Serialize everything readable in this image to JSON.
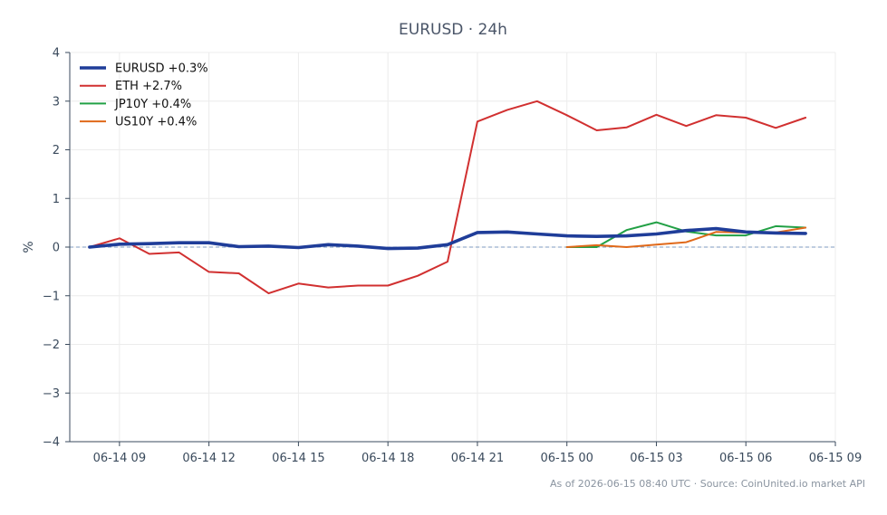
{
  "chart_data": {
    "type": "line",
    "title": "EURUSD · 24h",
    "xlabel": "",
    "ylabel": "%",
    "ylim": [
      -4,
      4
    ],
    "xlim": [
      "2026-06-14 07:20",
      "2026-06-15 09:00"
    ],
    "x_ticks": [
      "06-14 09",
      "06-14 12",
      "06-14 15",
      "06-14 18",
      "06-14 21",
      "06-15 00",
      "06-15 03",
      "06-15 06",
      "06-15 09"
    ],
    "x_tick_times": [
      "2026-06-14 09:00",
      "2026-06-14 12:00",
      "2026-06-14 15:00",
      "2026-06-14 18:00",
      "2026-06-14 21:00",
      "2026-06-15 00:00",
      "2026-06-15 03:00",
      "2026-06-15 06:00",
      "2026-06-15 09:00"
    ],
    "y_ticks": [
      4,
      3,
      2,
      1,
      0,
      -1,
      -2,
      -3,
      -4
    ],
    "y_tick_labels": [
      "4",
      "3",
      "2",
      "1",
      "0",
      "−1",
      "−2",
      "−3",
      "−4"
    ],
    "grid": true,
    "zero_line": true,
    "legend_position": "top-left",
    "footer": "As of 2026-06-15 08:40 UTC · Source: CoinUnited.io market API",
    "series": [
      {
        "name": "EURUSD +0.3%",
        "color": "#1f3d99",
        "thick": true,
        "x": [
          "2026-06-14 08:00",
          "2026-06-14 09:00",
          "2026-06-14 10:00",
          "2026-06-14 11:00",
          "2026-06-14 12:00",
          "2026-06-14 13:00",
          "2026-06-14 14:00",
          "2026-06-14 15:00",
          "2026-06-14 16:00",
          "2026-06-14 17:00",
          "2026-06-14 18:00",
          "2026-06-14 19:00",
          "2026-06-14 20:00",
          "2026-06-14 21:00",
          "2026-06-14 22:00",
          "2026-06-14 23:00",
          "2026-06-15 00:00",
          "2026-06-15 01:00",
          "2026-06-15 02:00",
          "2026-06-15 03:00",
          "2026-06-15 04:00",
          "2026-06-15 05:00",
          "2026-06-15 06:00",
          "2026-06-15 07:00",
          "2026-06-15 08:00"
        ],
        "values": [
          0.0,
          0.06,
          0.07,
          0.09,
          0.09,
          0.01,
          0.02,
          -0.01,
          0.05,
          0.02,
          -0.03,
          -0.02,
          0.05,
          0.3,
          0.31,
          0.27,
          0.23,
          0.22,
          0.23,
          0.27,
          0.34,
          0.38,
          0.31,
          0.29,
          0.28
        ]
      },
      {
        "name": "ETH +2.7%",
        "color": "#d13030",
        "thick": false,
        "x": [
          "2026-06-14 08:00",
          "2026-06-14 09:00",
          "2026-06-14 10:00",
          "2026-06-14 11:00",
          "2026-06-14 12:00",
          "2026-06-14 13:00",
          "2026-06-14 14:00",
          "2026-06-14 15:00",
          "2026-06-14 16:00",
          "2026-06-14 17:00",
          "2026-06-14 18:00",
          "2026-06-14 19:00",
          "2026-06-14 20:00",
          "2026-06-14 21:00",
          "2026-06-14 22:00",
          "2026-06-14 23:00",
          "2026-06-15 00:00",
          "2026-06-15 01:00",
          "2026-06-15 02:00",
          "2026-06-15 03:00",
          "2026-06-15 04:00",
          "2026-06-15 05:00",
          "2026-06-15 06:00",
          "2026-06-15 07:00",
          "2026-06-15 08:00"
        ],
        "values": [
          0.0,
          0.18,
          -0.14,
          -0.11,
          -0.51,
          -0.54,
          -0.95,
          -0.75,
          -0.83,
          -0.79,
          -0.79,
          -0.59,
          -0.3,
          2.58,
          2.82,
          3.0,
          2.71,
          2.4,
          2.46,
          2.72,
          2.49,
          2.71,
          2.66,
          2.45,
          2.66
        ]
      },
      {
        "name": "JP10Y +0.4%",
        "color": "#22a045",
        "thick": false,
        "x": [
          "2026-06-15 00:00",
          "2026-06-15 01:00",
          "2026-06-15 02:00",
          "2026-06-15 03:00",
          "2026-06-15 04:00",
          "2026-06-15 05:00",
          "2026-06-15 06:00",
          "2026-06-15 07:00",
          "2026-06-15 08:00"
        ],
        "values": [
          0.0,
          0.0,
          0.35,
          0.51,
          0.32,
          0.24,
          0.24,
          0.43,
          0.4
        ]
      },
      {
        "name": "US10Y +0.4%",
        "color": "#e0691a",
        "thick": false,
        "x": [
          "2026-06-15 00:00",
          "2026-06-15 01:00",
          "2026-06-15 02:00",
          "2026-06-15 03:00",
          "2026-06-15 04:00",
          "2026-06-15 05:00",
          "2026-06-15 06:00",
          "2026-06-15 07:00",
          "2026-06-15 08:00"
        ],
        "values": [
          0.0,
          0.04,
          0.0,
          0.05,
          0.1,
          0.31,
          0.3,
          0.3,
          0.4
        ]
      }
    ]
  }
}
